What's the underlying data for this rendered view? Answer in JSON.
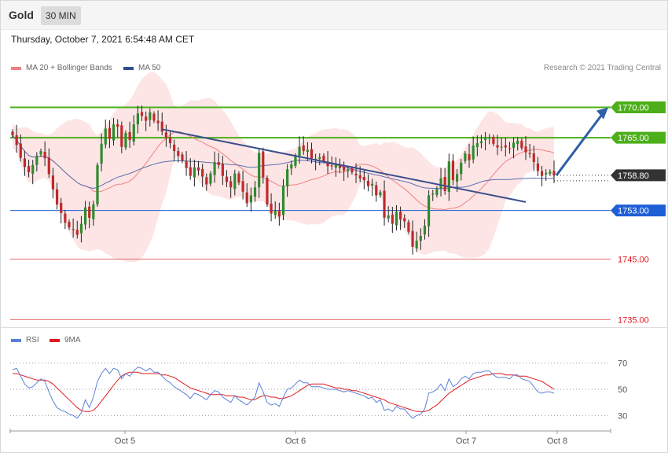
{
  "header": {
    "symbol": "Gold",
    "timeframe": "30 MIN"
  },
  "datetime": "Thursday, October 7, 2021 6:54:48 AM CET",
  "legend": {
    "ma20_label": "MA 20 + Bollinger Bands",
    "ma50_label": "MA 50",
    "ma20_color": "#f08080",
    "ma50_color": "#2f4f8f"
  },
  "copyright": "Research © 2021 Trading Central",
  "rsi_legend": {
    "rsi_label": "RSI",
    "ma_label": "9MA",
    "rsi_color": "#5b7fd6",
    "ma_color": "#e0181e"
  },
  "chart_data": [
    {
      "type": "candlestick",
      "x_ticks": [
        "Oct 5",
        "Oct 6",
        "Oct 7",
        "Oct 8"
      ],
      "ylim": [
        1733.5,
        1775
      ],
      "current_price": 1758.8,
      "levels": [
        {
          "value": 1770.0,
          "label": "1770.00",
          "kind": "resistance",
          "color": "#4caf19"
        },
        {
          "value": 1765.0,
          "label": "1765.00",
          "kind": "resistance",
          "color": "#4caf19"
        },
        {
          "value": 1753.0,
          "label": "1753.00",
          "kind": "pivot",
          "color": "#1f5fd6"
        },
        {
          "value": 1745.0,
          "label": "1745.00",
          "kind": "support",
          "color": "#e07070"
        },
        {
          "value": 1735.0,
          "label": "1735.00",
          "kind": "support",
          "color": "#e07070"
        }
      ],
      "close": [
        1765.4,
        1763.8,
        1761.7,
        1760.2,
        1759.3,
        1760.5,
        1762.0,
        1762.8,
        1761.6,
        1759.0,
        1756.5,
        1754.0,
        1752.6,
        1751.0,
        1750.2,
        1749.8,
        1749.0,
        1750.8,
        1753.5,
        1751.8,
        1754.0,
        1760.5,
        1764.0,
        1766.5,
        1764.8,
        1767.2,
        1766.8,
        1763.5,
        1765.8,
        1764.6,
        1767.2,
        1769.0,
        1768.6,
        1767.8,
        1769.2,
        1767.8,
        1767.4,
        1766.0,
        1765.0,
        1764.1,
        1762.8,
        1762.0,
        1761.2,
        1760.0,
        1758.7,
        1760.1,
        1759.6,
        1758.6,
        1757.3,
        1759.1,
        1761.0,
        1760.5,
        1758.7,
        1757.7,
        1756.8,
        1759.1,
        1757.6,
        1756.1,
        1754.2,
        1755.5,
        1756.8,
        1762.5,
        1758.5,
        1754.0,
        1752.5,
        1753.0,
        1752.0,
        1757.1,
        1759.8,
        1760.6,
        1762.0,
        1763.5,
        1762.8,
        1763.0,
        1761.6,
        1761.5,
        1761.8,
        1761.2,
        1760.3,
        1760.3,
        1760.5,
        1760.0,
        1759.6,
        1759.8,
        1759.3,
        1758.8,
        1758.3,
        1758.0,
        1757.0,
        1757.4,
        1755.5,
        1756.0,
        1751.8,
        1752.2,
        1750.8,
        1752.8,
        1751.5,
        1751.2,
        1749.5,
        1747.0,
        1748.0,
        1748.8,
        1750.5,
        1755.5,
        1755.8,
        1756.6,
        1758.3,
        1756.2,
        1761.1,
        1758.0,
        1759.0,
        1760.9,
        1762.4,
        1761.3,
        1763.7,
        1764.1,
        1764.4,
        1765.1,
        1765.0,
        1764.0,
        1763.4,
        1763.5,
        1763.4,
        1763.2,
        1764.2,
        1764.5,
        1763.3,
        1762.6,
        1762.3,
        1761.0,
        1759.5,
        1758.7,
        1759.2,
        1759.4,
        1758.8
      ],
      "rsi": {
        "ylim": [
          20,
          80
        ],
        "levels": [
          {
            "value": 70,
            "label": "70"
          },
          {
            "value": 50,
            "label": "50"
          },
          {
            "value": 30,
            "label": "30"
          }
        ],
        "rsi_values": [
          65,
          66,
          60,
          54,
          51,
          52,
          55,
          58,
          56,
          48,
          41,
          36,
          34,
          33,
          31,
          30,
          28,
          32,
          42,
          36,
          44,
          56,
          62,
          66,
          62,
          66,
          65,
          58,
          62,
          60,
          64,
          67,
          66,
          64,
          66,
          63,
          63,
          60,
          57,
          55,
          52,
          50,
          48,
          46,
          43,
          47,
          46,
          44,
          42,
          46,
          49,
          48,
          44,
          42,
          40,
          45,
          42,
          40,
          38,
          41,
          44,
          55,
          48,
          40,
          38,
          39,
          37,
          44,
          50,
          51,
          54,
          57,
          55,
          55,
          52,
          52,
          52,
          51,
          50,
          50,
          50,
          49,
          48,
          49,
          48,
          47,
          46,
          45,
          43,
          44,
          40,
          42,
          34,
          35,
          33,
          37,
          35,
          35,
          31,
          28,
          30,
          31,
          35,
          47,
          48,
          50,
          54,
          49,
          58,
          52,
          54,
          58,
          60,
          58,
          62,
          63,
          63,
          64,
          64,
          61,
          59,
          59,
          59,
          58,
          61,
          61,
          58,
          57,
          56,
          52,
          48,
          47,
          48,
          48,
          47
        ],
        "ma_values": [
          62,
          62,
          61,
          60,
          59,
          58,
          57,
          57,
          57,
          56,
          54,
          51,
          48,
          45,
          42,
          39,
          36,
          34,
          33,
          33,
          34,
          37,
          41,
          45,
          49,
          53,
          57,
          60,
          62,
          63,
          63,
          63,
          62,
          62,
          62,
          62,
          62,
          61,
          61,
          60,
          59,
          57,
          55,
          53,
          51,
          50,
          49,
          48,
          47,
          46,
          46,
          46,
          46,
          45,
          45,
          45,
          44,
          44,
          43,
          42,
          42,
          44,
          45,
          45,
          44,
          44,
          43,
          43,
          44,
          45,
          47,
          49,
          51,
          53,
          54,
          54,
          54,
          54,
          53,
          52,
          51,
          51,
          50,
          50,
          49,
          49,
          48,
          47,
          46,
          45,
          44,
          43,
          42,
          40,
          39,
          38,
          37,
          36,
          35,
          34,
          33,
          33,
          33,
          34,
          36,
          38,
          41,
          44,
          47,
          49,
          51,
          53,
          55,
          57,
          58,
          59,
          60,
          61,
          61,
          62,
          62,
          62,
          61,
          61,
          61,
          60,
          60,
          60,
          59,
          58,
          57,
          56,
          54,
          52,
          50
        ]
      }
    }
  ]
}
